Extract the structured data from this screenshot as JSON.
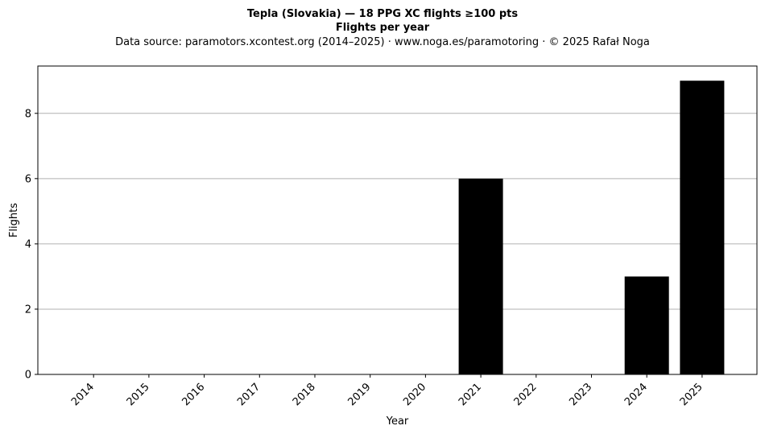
{
  "chart_data": {
    "type": "bar",
    "title_line1": "Tepla (Slovakia)  —  18 PPG XC flights ≥100 pts",
    "title_line2": "Flights per year",
    "subtitle": "Data source: paramotors.xcontest.org (2014–2025)  ·  www.noga.es/paramotoring  ·  © 2025 Rafał Noga",
    "xlabel": "Year",
    "ylabel": "Flights",
    "categories": [
      "2014",
      "2015",
      "2016",
      "2017",
      "2018",
      "2019",
      "2020",
      "2021",
      "2022",
      "2023",
      "2024",
      "2025"
    ],
    "values": [
      0,
      0,
      0,
      0,
      0,
      0,
      0,
      6,
      0,
      0,
      3,
      9
    ],
    "ylim": [
      0,
      9.45
    ],
    "yticks": [
      0,
      2,
      4,
      6,
      8
    ],
    "grid": "y-major",
    "bar_color": "#000000",
    "grid_color": "#b0b0b0"
  }
}
